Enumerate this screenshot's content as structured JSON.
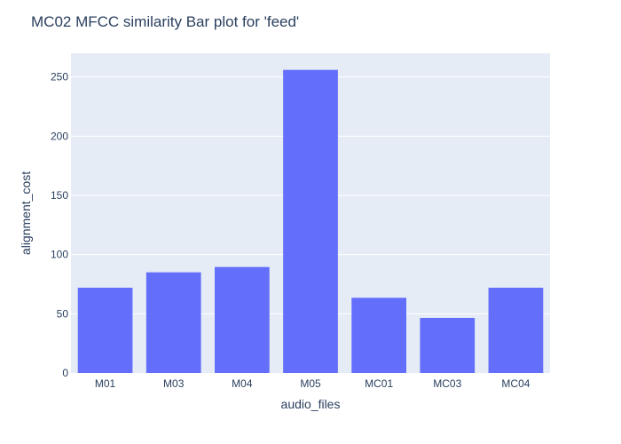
{
  "chart_data": {
    "type": "bar",
    "title": "MC02 MFCC similarity Bar plot for 'feed'",
    "xlabel": "audio_files",
    "ylabel": "alignment_cost",
    "categories": [
      "M01",
      "M03",
      "M04",
      "M05",
      "MC01",
      "MC03",
      "MC04"
    ],
    "values": [
      72,
      85,
      89.5,
      256,
      63.5,
      46.5,
      72
    ],
    "ylim": [
      0,
      270
    ],
    "yticks": [
      0,
      50,
      100,
      150,
      200,
      250
    ],
    "grid": true,
    "colors": {
      "bar": "#636efa",
      "plot_background": "#e5ecf6",
      "grid": "#ffffff",
      "text": "#2a3f5f"
    }
  }
}
